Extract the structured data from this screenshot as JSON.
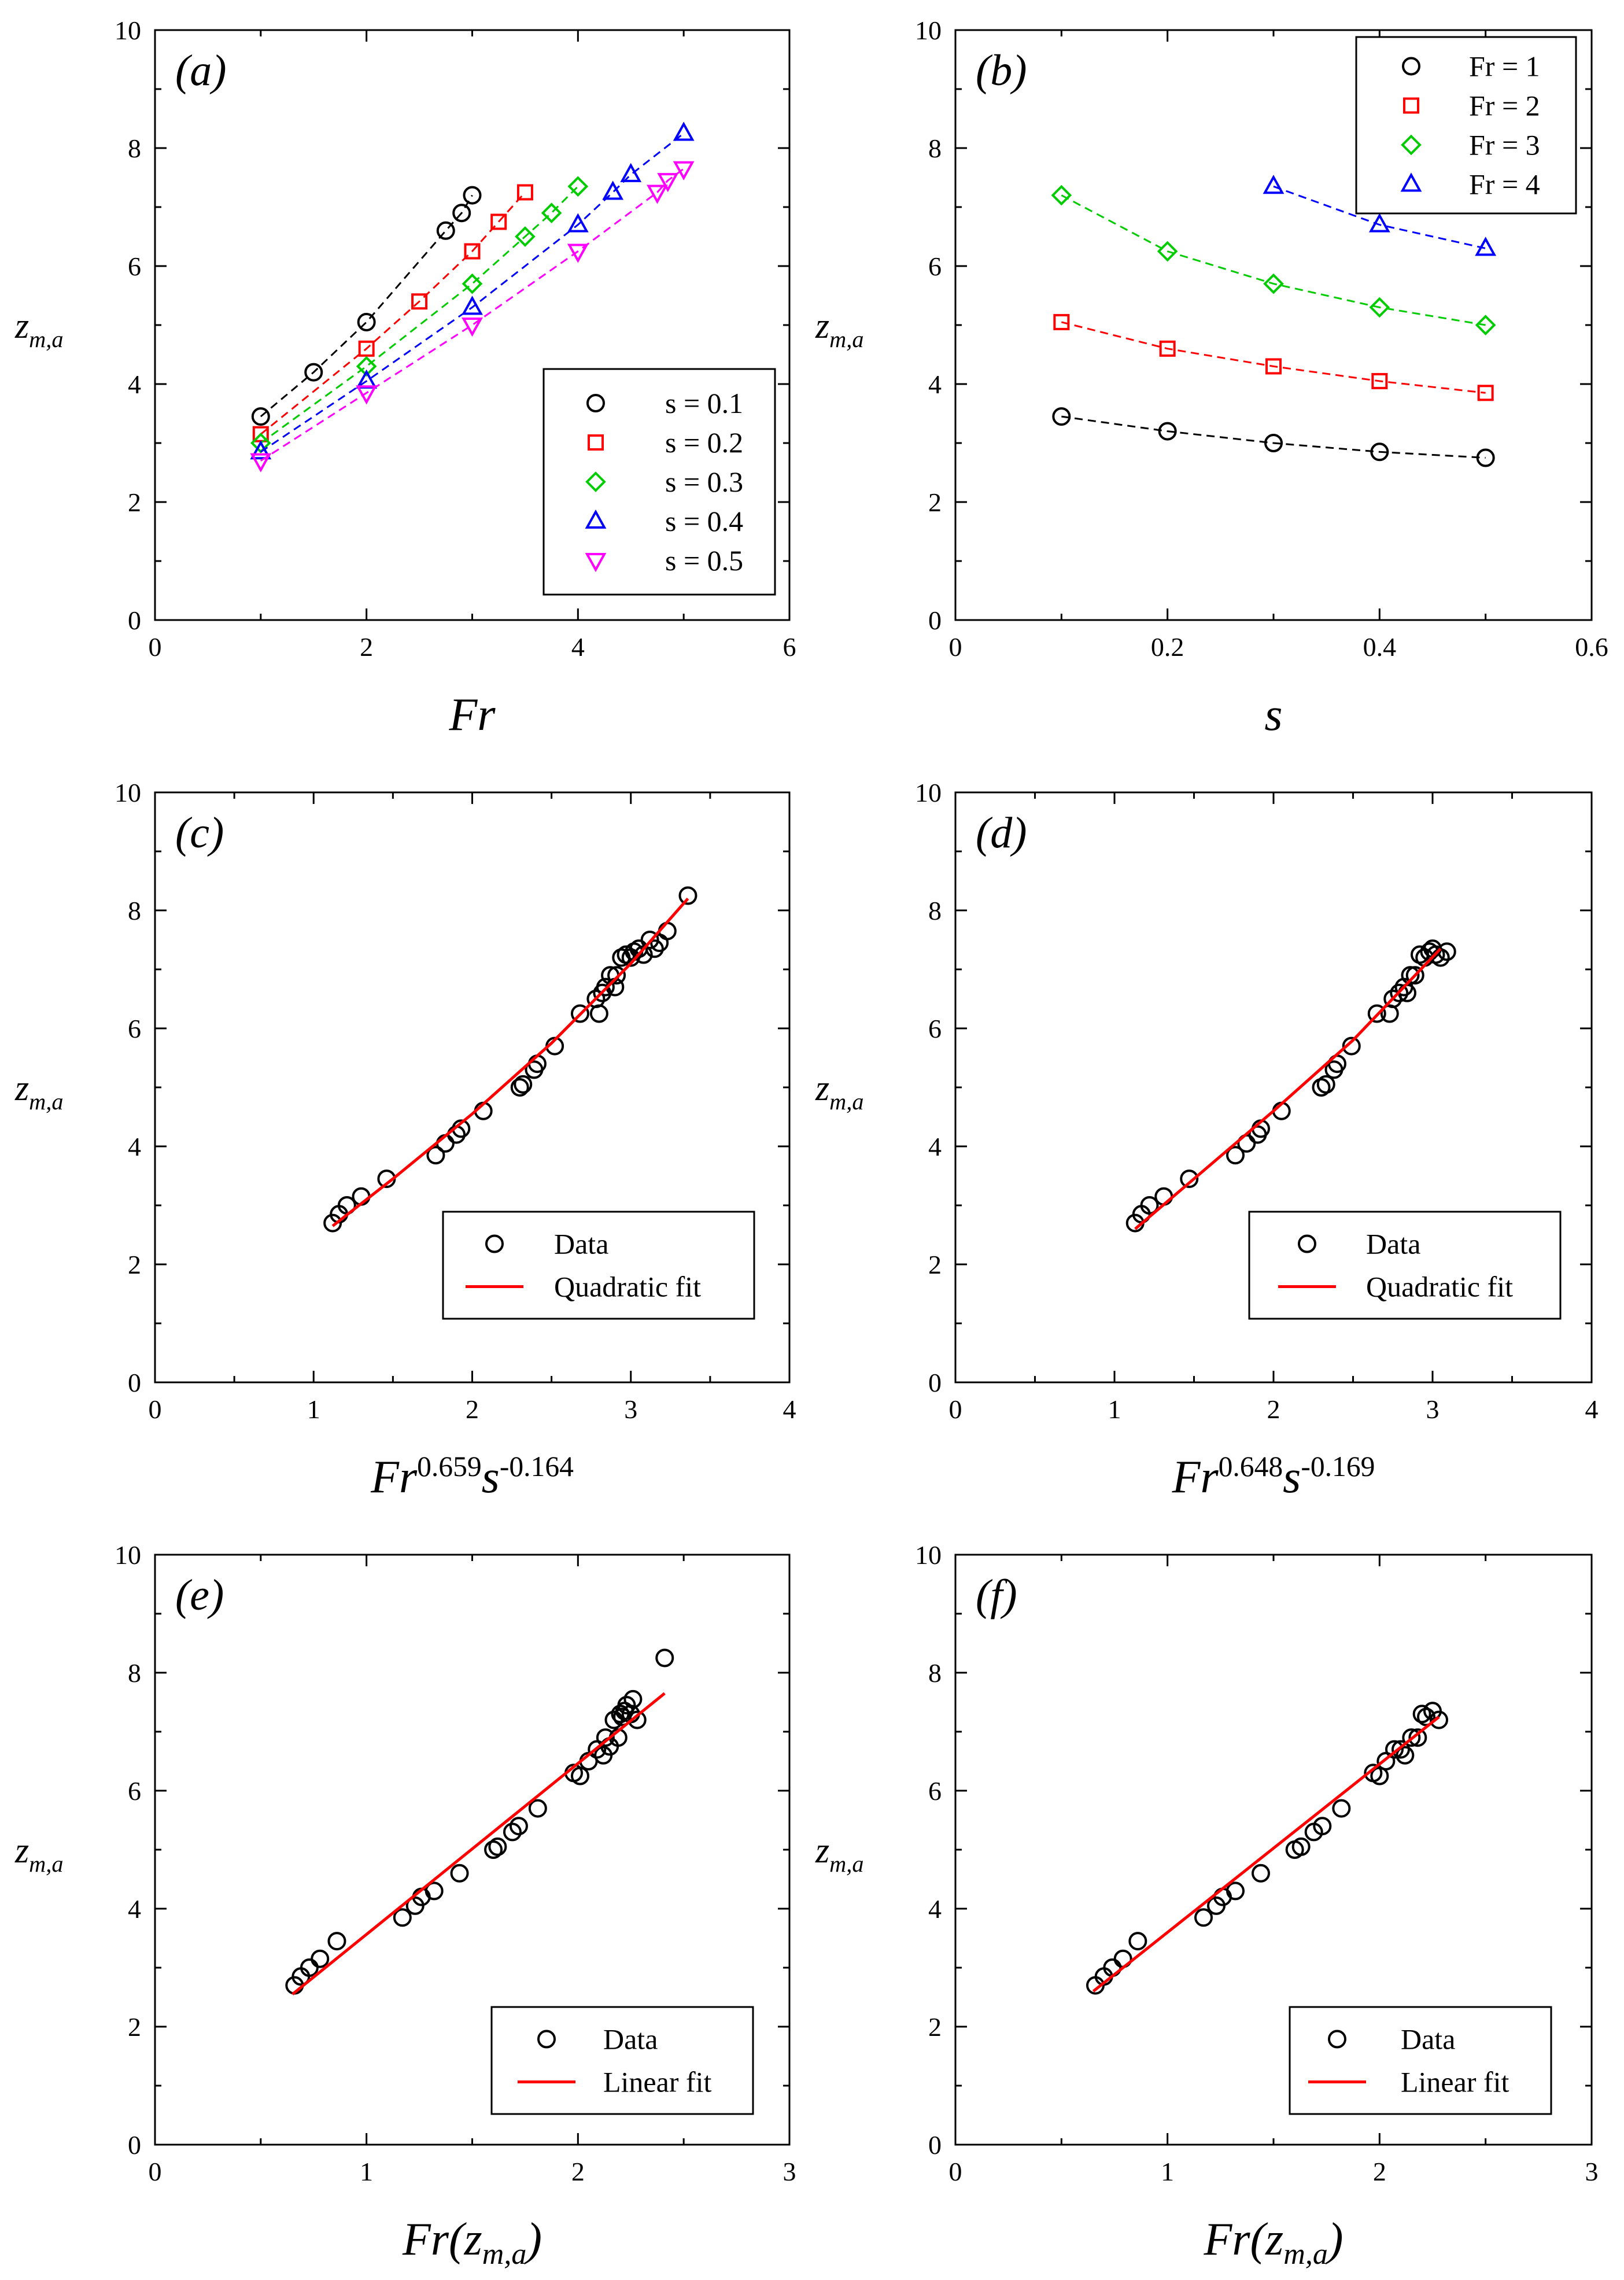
{
  "colors": {
    "s1": "#000000",
    "s2": "#ff0000",
    "s3": "#00cc00",
    "s4": "#0000ff",
    "s5": "#ff00ff",
    "fit": "#ff0000"
  },
  "chart_data": [
    {
      "id": "a",
      "type": "line",
      "panel_label": "(a)",
      "xlabel": "Fr",
      "ylabel": "z_{m,a}",
      "xlim": [
        0,
        6
      ],
      "ylim": [
        0,
        10
      ],
      "xticks": [
        "0",
        "2",
        "4",
        "6"
      ],
      "yticks": [
        "0",
        "2",
        "4",
        "6",
        "8",
        "10"
      ],
      "legend_position": "bottom-right",
      "series": [
        {
          "name": "s = 0.1",
          "marker": "circle",
          "color": "#000000",
          "dashed": true,
          "x": [
            1,
            1.5,
            2,
            2.75,
            2.9,
            3
          ],
          "y": [
            3.45,
            4.2,
            5.05,
            6.6,
            6.9,
            7.2
          ]
        },
        {
          "name": "s = 0.2",
          "marker": "square",
          "color": "#ff0000",
          "dashed": true,
          "x": [
            1,
            2,
            2.5,
            3,
            3.25,
            3.5
          ],
          "y": [
            3.15,
            4.6,
            5.4,
            6.25,
            6.75,
            7.25
          ]
        },
        {
          "name": "s = 0.3",
          "marker": "diamond",
          "color": "#00cc00",
          "dashed": true,
          "x": [
            1,
            2,
            3,
            3.5,
            3.75,
            4
          ],
          "y": [
            3.0,
            4.3,
            5.7,
            6.5,
            6.9,
            7.35
          ]
        },
        {
          "name": "s = 0.4",
          "marker": "triangle-up",
          "color": "#0000ff",
          "dashed": true,
          "x": [
            1,
            2,
            3,
            4,
            4.33,
            4.5,
            5
          ],
          "y": [
            2.85,
            4.05,
            5.3,
            6.7,
            7.25,
            7.55,
            8.25
          ]
        },
        {
          "name": "s = 0.5",
          "marker": "triangle-down",
          "color": "#ff00ff",
          "dashed": true,
          "x": [
            1,
            2,
            3,
            4,
            4.75,
            4.85,
            5
          ],
          "y": [
            2.7,
            3.85,
            5.0,
            6.25,
            7.25,
            7.45,
            7.65
          ]
        }
      ]
    },
    {
      "id": "b",
      "type": "line",
      "panel_label": "(b)",
      "xlabel": "s",
      "ylabel": "z_{m,a}",
      "xlim": [
        0,
        0.6
      ],
      "ylim": [
        0,
        10
      ],
      "xticks": [
        "0",
        "0.2",
        "0.4",
        "0.6"
      ],
      "yticks": [
        "0",
        "2",
        "4",
        "6",
        "8",
        "10"
      ],
      "legend_position": "top-right",
      "series": [
        {
          "name": "Fr = 1",
          "marker": "circle",
          "color": "#000000",
          "dashed": true,
          "x": [
            0.1,
            0.2,
            0.3,
            0.4,
            0.5
          ],
          "y": [
            3.45,
            3.2,
            3.0,
            2.85,
            2.75
          ]
        },
        {
          "name": "Fr = 2",
          "marker": "square",
          "color": "#ff0000",
          "dashed": true,
          "x": [
            0.1,
            0.2,
            0.3,
            0.4,
            0.5
          ],
          "y": [
            5.05,
            4.6,
            4.3,
            4.05,
            3.85
          ]
        },
        {
          "name": "Fr = 3",
          "marker": "diamond",
          "color": "#00cc00",
          "dashed": true,
          "x": [
            0.1,
            0.2,
            0.3,
            0.4,
            0.5
          ],
          "y": [
            7.2,
            6.25,
            5.7,
            5.3,
            5.0
          ]
        },
        {
          "name": "Fr = 4",
          "marker": "triangle-up",
          "color": "#0000ff",
          "dashed": true,
          "x": [
            0.3,
            0.4,
            0.5
          ],
          "y": [
            7.35,
            6.7,
            6.3
          ]
        }
      ]
    },
    {
      "id": "c",
      "type": "scatter",
      "panel_label": "(c)",
      "xlabel": "Fr^{0.659}s^{-0.164}",
      "ylabel": "z_{m,a}",
      "xlim": [
        0,
        4
      ],
      "ylim": [
        0,
        10
      ],
      "xticks": [
        "0",
        "1",
        "2",
        "3",
        "4"
      ],
      "yticks": [
        "0",
        "2",
        "4",
        "6",
        "8",
        "10"
      ],
      "legend_position": "bottom-right",
      "series": [
        {
          "name": "Data",
          "marker": "circle",
          "color": "#000000",
          "x": [
            1.12,
            1.16,
            1.21,
            1.3,
            1.46,
            1.77,
            1.83,
            1.9,
            1.93,
            2.07,
            2.3,
            2.32,
            2.39,
            2.41,
            2.52,
            2.68,
            2.78,
            2.8,
            2.82,
            2.84,
            2.87,
            2.9,
            2.91,
            2.94,
            2.97,
            3.0,
            3.02,
            3.05,
            3.08,
            3.12,
            3.15,
            3.18,
            3.23,
            3.36
          ],
          "y": [
            2.7,
            2.85,
            3.0,
            3.15,
            3.45,
            3.85,
            4.05,
            4.2,
            4.3,
            4.6,
            5.0,
            5.05,
            5.3,
            5.4,
            5.7,
            6.25,
            6.5,
            6.25,
            6.6,
            6.7,
            6.9,
            6.7,
            6.9,
            7.2,
            7.25,
            7.2,
            7.3,
            7.35,
            7.25,
            7.5,
            7.35,
            7.45,
            7.65,
            8.25
          ]
        },
        {
          "name": "Quadratic fit",
          "type": "line",
          "color": "#ff0000",
          "x": [
            1.12,
            1.5,
            2.0,
            2.5,
            3.0,
            3.36
          ],
          "y": [
            2.65,
            3.45,
            4.55,
            5.75,
            7.1,
            8.2
          ]
        }
      ]
    },
    {
      "id": "d",
      "type": "scatter",
      "panel_label": "(d)",
      "xlabel": "Fr^{0.648}s^{-0.169}",
      "ylabel": "z_{m,a}",
      "xlim": [
        0,
        4
      ],
      "ylim": [
        0,
        10
      ],
      "xticks": [
        "0",
        "1",
        "2",
        "3",
        "4"
      ],
      "yticks": [
        "0",
        "2",
        "4",
        "6",
        "8",
        "10"
      ],
      "legend_position": "bottom-right",
      "series": [
        {
          "name": "Data",
          "marker": "circle",
          "color": "#000000",
          "x": [
            1.13,
            1.17,
            1.22,
            1.31,
            1.47,
            1.76,
            1.83,
            1.9,
            1.92,
            2.05,
            2.3,
            2.33,
            2.38,
            2.4,
            2.49,
            2.65,
            2.73,
            2.75,
            2.79,
            2.82,
            2.84,
            2.86,
            2.89,
            2.92,
            2.95,
            2.98,
            3.0,
            3.02,
            3.05,
            3.09
          ],
          "y": [
            2.7,
            2.85,
            3.0,
            3.15,
            3.45,
            3.85,
            4.05,
            4.2,
            4.3,
            4.6,
            5.0,
            5.05,
            5.3,
            5.4,
            5.7,
            6.25,
            6.25,
            6.5,
            6.6,
            6.7,
            6.6,
            6.9,
            6.9,
            7.25,
            7.2,
            7.3,
            7.35,
            7.25,
            7.2,
            7.3
          ]
        },
        {
          "name": "Quadratic fit",
          "type": "line",
          "color": "#ff0000",
          "x": [
            1.13,
            1.5,
            2.0,
            2.5,
            3.05
          ],
          "y": [
            2.6,
            3.45,
            4.6,
            5.8,
            7.35
          ]
        }
      ]
    },
    {
      "id": "e",
      "type": "scatter",
      "panel_label": "(e)",
      "xlabel": "Fr(z_{m,a})",
      "ylabel": "z_{m,a}",
      "xlim": [
        0,
        3
      ],
      "ylim": [
        0,
        10
      ],
      "xticks": [
        "0",
        "1",
        "2",
        "3"
      ],
      "yticks": [
        "0",
        "2",
        "4",
        "6",
        "8",
        "10"
      ],
      "legend_position": "bottom-right",
      "series": [
        {
          "name": "Data",
          "marker": "circle",
          "color": "#000000",
          "x": [
            0.66,
            0.69,
            0.73,
            0.78,
            0.86,
            1.17,
            1.23,
            1.26,
            1.32,
            1.44,
            1.6,
            1.62,
            1.69,
            1.72,
            1.81,
            1.98,
            2.01,
            2.05,
            2.09,
            2.12,
            2.13,
            2.15,
            2.17,
            2.19,
            2.2,
            2.21,
            2.22,
            2.23,
            2.25,
            2.26,
            2.28,
            2.41
          ],
          "y": [
            2.7,
            2.85,
            3.0,
            3.15,
            3.45,
            3.85,
            4.05,
            4.2,
            4.3,
            4.6,
            5.0,
            5.05,
            5.3,
            5.4,
            5.7,
            6.3,
            6.25,
            6.5,
            6.7,
            6.6,
            6.9,
            6.75,
            7.2,
            6.9,
            7.3,
            7.25,
            7.35,
            7.45,
            7.3,
            7.55,
            7.2,
            8.25
          ]
        },
        {
          "name": "Linear fit",
          "type": "line",
          "color": "#ff0000",
          "x": [
            0.65,
            2.41
          ],
          "y": [
            2.55,
            7.65
          ]
        }
      ]
    },
    {
      "id": "f",
      "type": "scatter",
      "panel_label": "(f)",
      "xlabel": "Fr(z_{m,a})",
      "ylabel": "z_{m,a}",
      "xlim": [
        0,
        3
      ],
      "ylim": [
        0,
        10
      ],
      "xticks": [
        "0",
        "1",
        "2",
        "3"
      ],
      "yticks": [
        "0",
        "2",
        "4",
        "6",
        "8",
        "10"
      ],
      "legend_position": "bottom-right",
      "series": [
        {
          "name": "Data",
          "marker": "circle",
          "color": "#000000",
          "x": [
            0.66,
            0.7,
            0.74,
            0.79,
            0.86,
            1.17,
            1.23,
            1.26,
            1.32,
            1.44,
            1.6,
            1.63,
            1.69,
            1.73,
            1.82,
            1.97,
            2.0,
            2.03,
            2.07,
            2.1,
            2.12,
            2.15,
            2.18,
            2.2,
            2.22,
            2.25,
            2.28
          ],
          "y": [
            2.7,
            2.85,
            3.0,
            3.15,
            3.45,
            3.85,
            4.05,
            4.2,
            4.3,
            4.6,
            5.0,
            5.05,
            5.3,
            5.4,
            5.7,
            6.3,
            6.25,
            6.5,
            6.7,
            6.7,
            6.6,
            6.9,
            6.9,
            7.3,
            7.25,
            7.35,
            7.2
          ]
        },
        {
          "name": "Linear fit",
          "type": "line",
          "color": "#ff0000",
          "x": [
            0.65,
            2.28
          ],
          "y": [
            2.6,
            7.25
          ]
        }
      ]
    }
  ]
}
